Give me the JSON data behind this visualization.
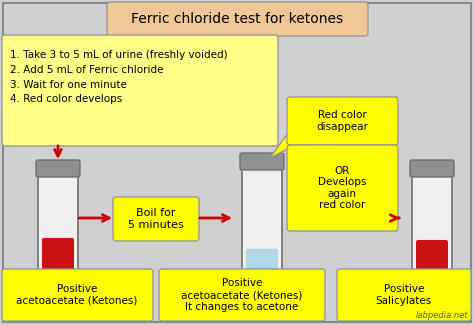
{
  "title": "Ferric chloride test for ketones",
  "title_bg": "#f0c896",
  "bg_color": "#d0d0d0",
  "steps_text": "1. Take 3 to 5 mL of urine (freshly voided)\n2. Add 5 mL of Ferric chloride\n3. Wait for one minute\n4. Red color develops",
  "steps_bg": "#ffff88",
  "boil_text": "Boil for\n5 minutes",
  "boil_bg": "#ffff00",
  "red_disappear_text": "Red color\ndisappear",
  "red_disappear_bg": "#ffff00",
  "or_text": "OR\nDevelops\nagain\nred color",
  "or_bg": "#ffff00",
  "label1": "Positive\nacetoacetate (Ketones)",
  "label2": "Positive\nacetoacetate (Ketones)\nIt changes to acetone",
  "label3": "Positive\nSalicylates",
  "label_bg": "#ffff00",
  "tube_body_color": "#f0f0f0",
  "tube_cap_color": "#909090",
  "tube_border_color": "#707070",
  "liquid_red": "#cc1111",
  "liquid_blue": "#b0d8e8",
  "arrow_color": "#cc0000",
  "watermark": "labpedia.net",
  "title_fontsize": 10,
  "steps_fontsize": 7.5,
  "label_fontsize": 7.5,
  "boil_fontsize": 8,
  "small_fontsize": 7.5
}
